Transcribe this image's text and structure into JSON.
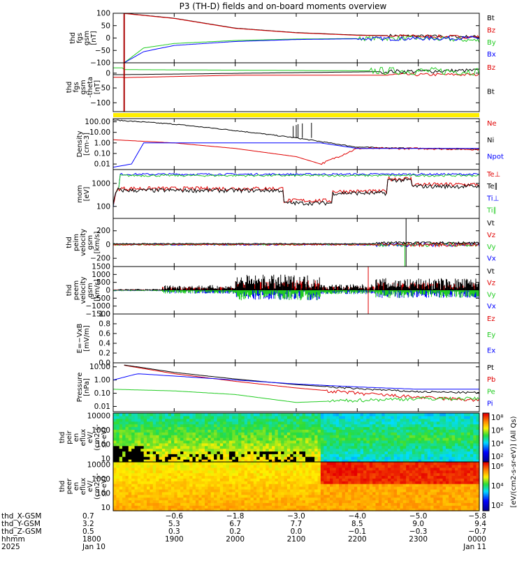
{
  "chart_data": {
    "type": "line",
    "title": "P3 (TH-D) fields and on-board moments overview",
    "colors": {
      "black": "#000000",
      "red": "#e00000",
      "green": "#22cc22",
      "blue": "#0000ff",
      "yellow": "#ffee00",
      "darkred": "#aa0000"
    },
    "panels": [
      {
        "id": "fgs",
        "ylabel": [
          "thd",
          "fgs",
          "gsm",
          "[nT]"
        ],
        "ylim": [
          -100,
          100
        ],
        "scale": "linear",
        "yticks": [
          -100,
          -50,
          0,
          50,
          100
        ],
        "yticklabels": [
          "−100",
          "−50",
          "0",
          "50",
          "100"
        ],
        "legend": [
          {
            "name": "Bt",
            "color": "black"
          },
          {
            "name": "Bz",
            "color": "red"
          },
          {
            "name": "By",
            "color": "green"
          },
          {
            "name": "Bx",
            "color": "blue"
          }
        ]
      },
      {
        "id": "fgs_theta",
        "ylabel": [
          "thd",
          "fgs",
          "gsm",
          "-theta",
          "[nT]"
        ],
        "ylim": [
          -130,
          35
        ],
        "scale": "linear",
        "yticks": [
          -100,
          -50,
          0
        ],
        "yticklabels": [
          "−100",
          "−50",
          "0"
        ],
        "legend": [
          {
            "name": "Bz",
            "color": "red"
          },
          {
            "name": "Bt",
            "color": "black"
          }
        ]
      },
      {
        "id": "density",
        "ylabel": [
          "Density",
          "[cm-3]"
        ],
        "ylim": [
          0.003,
          200
        ],
        "scale": "log",
        "yticks": [
          0.01,
          0.1,
          1,
          10,
          100
        ],
        "yticklabels": [
          "0.01",
          "0.10",
          "1.00",
          "10.00",
          "100.00"
        ],
        "legend": [
          {
            "name": "Ne",
            "color": "red"
          },
          {
            "name": "Ni",
            "color": "black"
          },
          {
            "name": "Npot",
            "color": "blue"
          }
        ]
      },
      {
        "id": "temp",
        "ylabel": [
          "mom",
          "[eV]"
        ],
        "ylim": [
          30,
          4000
        ],
        "scale": "log",
        "yticks": [
          100,
          1000
        ],
        "yticklabels": [
          "100",
          "1000"
        ],
        "legend": [
          {
            "name": "Te⊥",
            "color": "red"
          },
          {
            "name": "Te∥",
            "color": "black"
          },
          {
            "name": "Ti⊥",
            "color": "blue"
          },
          {
            "name": "Ti∥",
            "color": "green"
          }
        ]
      },
      {
        "id": "vi",
        "ylabel": [
          "thd",
          "peim",
          "velocity",
          "gsm",
          "[km/s]"
        ],
        "ylim": [
          -320,
          380
        ],
        "scale": "linear",
        "yticks": [
          -200,
          0,
          200
        ],
        "yticklabels": [
          "−200",
          "0",
          "200"
        ],
        "legend": [
          {
            "name": "Vt",
            "color": "black"
          },
          {
            "name": "Vz",
            "color": "red"
          },
          {
            "name": "Vy",
            "color": "green"
          },
          {
            "name": "Vx",
            "color": "blue"
          }
        ]
      },
      {
        "id": "ve",
        "ylabel": [
          "thd",
          "peem",
          "velocity",
          "gsm",
          "[km/s]"
        ],
        "ylim": [
          -1500,
          1500
        ],
        "scale": "linear",
        "yticks": [
          -1500,
          -1000,
          -500,
          0,
          500,
          1000,
          1500
        ],
        "yticklabels": [
          "−1500",
          "−1000",
          "−500",
          "0",
          "500",
          "1000",
          "1500"
        ],
        "legend": [
          {
            "name": "Vt",
            "color": "black"
          },
          {
            "name": "Vz",
            "color": "red"
          },
          {
            "name": "Vy",
            "color": "green"
          },
          {
            "name": "Vx",
            "color": "blue"
          }
        ]
      },
      {
        "id": "efield",
        "ylabel": [
          "E=−VxB",
          "[mV/m]"
        ],
        "ylim": [
          0,
          1
        ],
        "scale": "linear",
        "yticks": [
          0,
          0.2,
          0.4,
          0.6,
          0.8,
          1.0
        ],
        "yticklabels": [
          "0.0",
          "0.2",
          "0.4",
          "0.6",
          "0.8",
          "1.0"
        ],
        "legend": [
          {
            "name": "Ez",
            "color": "red"
          },
          {
            "name": "Ey",
            "color": "green"
          },
          {
            "name": "Ex",
            "color": "blue"
          }
        ]
      },
      {
        "id": "pressure",
        "ylabel": [
          "Pressure",
          "[nPa]"
        ],
        "ylim": [
          0.004,
          20
        ],
        "scale": "log",
        "yticks": [
          0.01,
          0.1,
          1,
          10
        ],
        "yticklabels": [
          "0.01",
          "0.10",
          "1.00",
          "10.00"
        ],
        "legend": [
          {
            "name": "Pt",
            "color": "black"
          },
          {
            "name": "Pb",
            "color": "red"
          },
          {
            "name": "Pe",
            "color": "green"
          },
          {
            "name": "Pi",
            "color": "blue"
          }
        ]
      },
      {
        "id": "peir",
        "ylabel": [
          "thd",
          "peir",
          "en",
          "eflux",
          "eV/",
          "(cm2-s-",
          "sr-eV)"
        ],
        "ylim": [
          6,
          16000
        ],
        "scale": "log",
        "yticks": [
          10,
          100,
          1000,
          10000
        ],
        "yticklabels": [
          "10",
          "100",
          "1000",
          "10000"
        ],
        "legend": []
      },
      {
        "id": "peer",
        "ylabel": [
          "thd",
          "peer",
          "en",
          "eflux",
          "eV/",
          "(cm2-s-",
          "sr-eV)"
        ],
        "ylim": [
          6,
          16000
        ],
        "scale": "log",
        "yticks": [
          10,
          100,
          1000,
          10000
        ],
        "yticklabels": [
          "10",
          "100",
          "1000",
          "10000"
        ],
        "legend": []
      }
    ],
    "colorbar": {
      "label": "[eV/(cm2-s-sr-eV)] (All Qs)",
      "ticks": [
        "10²",
        "10⁴",
        "10⁶",
        "10⁸"
      ],
      "ticks_lower": [
        "10²",
        "10⁴",
        "10⁶"
      ]
    },
    "xaxis": {
      "range": [
        1800,
        2400
      ],
      "ticks": [
        1800,
        1900,
        2000,
        2100,
        2200,
        2300,
        2400
      ]
    },
    "ephemeris": {
      "labels": [
        "thd_X-GSM",
        "thd_Y-GSM",
        "thd_Z-GSM",
        "hhmm",
        "2025"
      ],
      "rows": [
        [
          "0.7",
          "−0.6",
          "−1.8",
          "−3.0",
          "−4.0",
          "−5.0",
          "−5.8"
        ],
        [
          "3.2",
          "5.3",
          "6.7",
          "7.7",
          "8.5",
          "9.0",
          "9.4"
        ],
        [
          "0.5",
          "0.3",
          "0.2",
          "0.0",
          "−0.1",
          "−0.3",
          "−0.7"
        ],
        [
          "1800",
          "1900",
          "2000",
          "2100",
          "2200",
          "2300",
          "0000"
        ],
        [
          "Jan 10",
          "",
          "",
          "",
          "",
          "",
          "Jan 11"
        ]
      ]
    },
    "series_samples": {
      "Bt_nT": {
        "x": [
          1818,
          1900,
          2000,
          2100,
          2200,
          2300,
          2400
        ],
        "y": [
          100,
          80,
          40,
          22,
          12,
          8,
          5
        ]
      },
      "Bx_nT": {
        "x": [
          1818,
          1850,
          1900,
          2000,
          2100,
          2200,
          2300,
          2400
        ],
        "y": [
          -100,
          -55,
          -30,
          -14,
          -6,
          -3,
          -2,
          0
        ]
      },
      "By_nT": {
        "x": [
          1818,
          1850,
          1900,
          2000,
          2100,
          2200,
          2300,
          2400
        ],
        "y": [
          -100,
          -40,
          -22,
          -10,
          -4,
          -2,
          -1,
          -10
        ]
      },
      "Ni_cm3": {
        "x": [
          1800,
          1900,
          2000,
          2100,
          2200,
          2300,
          2400
        ],
        "y": [
          150,
          60,
          15,
          3,
          0.4,
          0.3,
          0.25
        ]
      },
      "Ne_cm3": {
        "x": [
          1800,
          1900,
          2000,
          2100,
          2140,
          2200,
          2300,
          2400
        ],
        "y": [
          2,
          1,
          0.3,
          0.05,
          0.01,
          0.3,
          0.3,
          0.25
        ]
      },
      "Npot_cm3": {
        "x": [
          1800,
          1830,
          1850,
          1900,
          2000,
          2100,
          2140,
          2200,
          2300,
          2400
        ],
        "y": [
          0.005,
          0.01,
          1,
          1,
          1,
          1,
          1,
          0.3,
          0.3,
          0.3
        ]
      },
      "Pb_nPa": {
        "x": [
          1818,
          1900,
          2000,
          2100,
          2200,
          2300,
          2400
        ],
        "y": [
          13,
          3,
          0.8,
          0.25,
          0.1,
          0.05,
          0.03
        ]
      },
      "Pi_nPa": {
        "x": [
          1800,
          1840,
          1900,
          2000,
          2100,
          2200,
          2300,
          2400
        ],
        "y": [
          1,
          3,
          2,
          1,
          0.5,
          0.3,
          0.2,
          0.2
        ]
      },
      "Pe_nPa": {
        "x": [
          1800,
          1900,
          2000,
          2100,
          2200,
          2300,
          2400
        ],
        "y": [
          0.2,
          0.15,
          0.08,
          0.02,
          0.03,
          0.04,
          0.04
        ]
      }
    }
  }
}
